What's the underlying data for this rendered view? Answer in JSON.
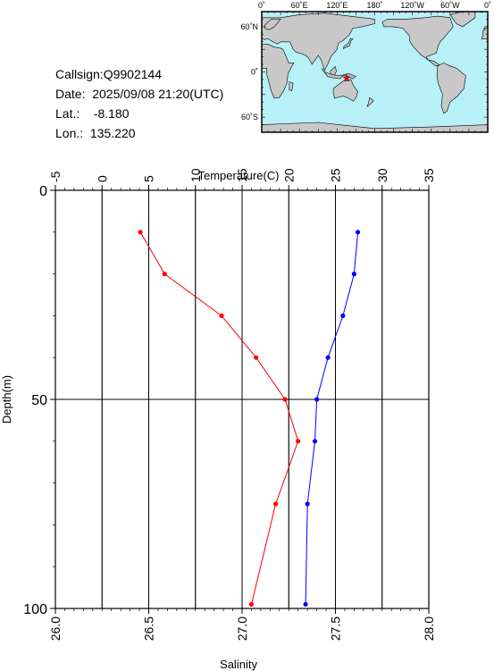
{
  "info": {
    "callsign": "Callsign:Q9902144",
    "date": "Date:  2025/09/08 21:20(UTC)",
    "lat_label": "Lat.:",
    "lat_value": "-8.180",
    "lon_label": "Lon.:",
    "lon_value": "135.220"
  },
  "map": {
    "lon_ticks": [
      "0˚",
      "60˚E",
      "120˚E",
      "180˚",
      "120˚W",
      "60˚W",
      "0˚"
    ],
    "lat_ticks": [
      "60˚N",
      "0˚",
      "60˚S"
    ],
    "ocean_color": "#b8f0f8",
    "land_color": "#c8c8c8",
    "marker_color": "#ff0000",
    "marker_lon": 135.22,
    "marker_lat": -8.18
  },
  "chart_data": {
    "type": "line",
    "top_axis_label": "Temperature(C)",
    "bottom_axis_label": "Salinity",
    "left_axis_label": "Depth(m)",
    "temperature_ticks": [
      "-5",
      "0",
      "5",
      "10",
      "15",
      "20",
      "25",
      "30",
      "35"
    ],
    "salinity_ticks": [
      "26.0",
      "26.5",
      "27.0",
      "27.5",
      "28.0"
    ],
    "depth_ticks": [
      "0",
      "50",
      "100"
    ],
    "temperature_range": [
      -5,
      35
    ],
    "salinity_range": [
      26.0,
      28.0
    ],
    "depth_range": [
      0,
      100
    ],
    "temperature_color": "#ff0000",
    "salinity_color": "#0000ff",
    "temperature": {
      "depth": [
        10,
        20,
        30,
        40,
        50,
        60,
        75,
        99
      ],
      "values": [
        4.1,
        6.7,
        12.8,
        16.5,
        19.6,
        21.0,
        18.6,
        16.0
      ]
    },
    "salinity": {
      "depth": [
        10,
        20,
        30,
        40,
        50,
        60,
        75,
        99
      ],
      "values": [
        27.62,
        27.6,
        27.54,
        27.46,
        27.4,
        27.39,
        27.35,
        27.34
      ]
    }
  }
}
